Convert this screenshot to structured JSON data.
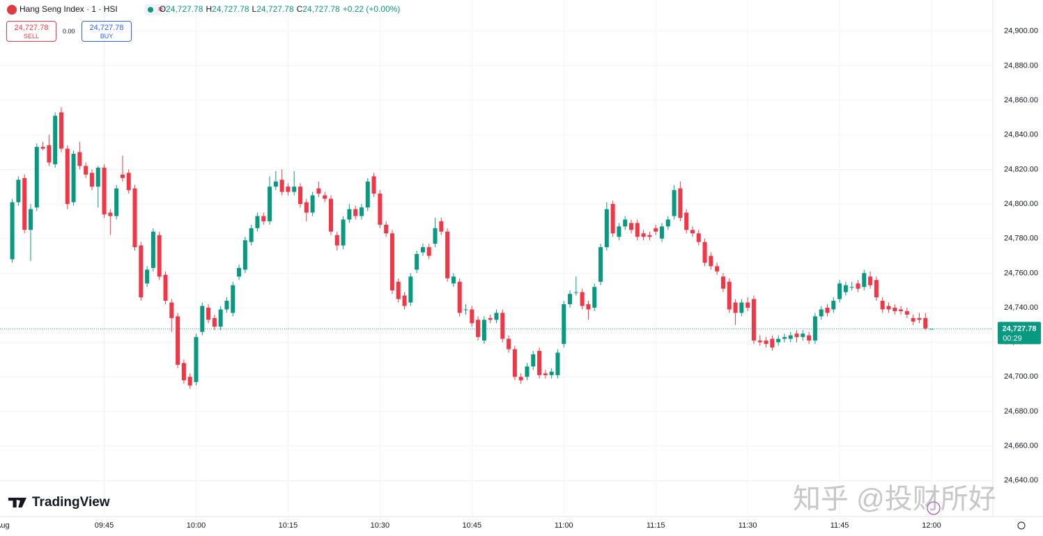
{
  "header": {
    "symbol": "Hang Seng Index · 1 · HSI",
    "o_key": "O",
    "o": "24,727.78",
    "h_key": "H",
    "h": "24,727.78",
    "l_key": "L",
    "l": "24,727.78",
    "c_key": "C",
    "c": "24,727.78",
    "change": "+0.22 (+0.00%)"
  },
  "trade": {
    "sell_price": "24,727.78",
    "sell": "SELL",
    "spread": "0.00",
    "buy_price": "24,727.78",
    "buy": "BUY"
  },
  "logo": "TradingView",
  "watermark": "知乎 @投财所好",
  "chart_data": {
    "type": "candlestick",
    "up_color": "#089981",
    "down_color": "#f23645",
    "grid": true,
    "xlim": [
      "09:28",
      "12:10"
    ],
    "ylim": [
      24620,
      24918
    ],
    "yticks": [
      {
        "value": 24640,
        "label": "24,640.00"
      },
      {
        "value": 24660,
        "label": "24,660.00"
      },
      {
        "value": 24680,
        "label": "24,680.00"
      },
      {
        "value": 24700,
        "label": "24,700.00"
      },
      {
        "value": 24720,
        "label": "24,720.00"
      },
      {
        "value": 24740,
        "label": "24,740.00"
      },
      {
        "value": 24760,
        "label": "24,760.00"
      },
      {
        "value": 24780,
        "label": "24,780.00"
      },
      {
        "value": 24800,
        "label": "24,800.00"
      },
      {
        "value": 24820,
        "label": "24,820.00"
      },
      {
        "value": 24840,
        "label": "24,840.00"
      },
      {
        "value": 24860,
        "label": "24,860.00"
      },
      {
        "value": 24880,
        "label": "24,880.00"
      },
      {
        "value": 24900,
        "label": "24,900.00"
      }
    ],
    "xticks": [
      {
        "value": "09:30",
        "label": "Aug"
      },
      "09:45",
      "10:00",
      "10:15",
      "10:30",
      "10:45",
      "11:00",
      "11:15",
      "11:30",
      "11:45",
      "12:00"
    ],
    "last_price": {
      "value": 24727.78,
      "label": "24,727.78"
    },
    "countdown": "00:29",
    "x": [
      "09:30",
      "09:31",
      "09:32",
      "09:33",
      "09:34",
      "09:35",
      "09:36",
      "09:37",
      "09:38",
      "09:39",
      "09:40",
      "09:41",
      "09:42",
      "09:43",
      "09:44",
      "09:45",
      "09:46",
      "09:47",
      "09:48",
      "09:49",
      "09:50",
      "09:51",
      "09:52",
      "09:53",
      "09:54",
      "09:55",
      "09:56",
      "09:57",
      "09:58",
      "09:59",
      "10:00",
      "10:01",
      "10:02",
      "10:03",
      "10:04",
      "10:05",
      "10:06",
      "10:07",
      "10:08",
      "10:09",
      "10:10",
      "10:11",
      "10:12",
      "10:13",
      "10:14",
      "10:15",
      "10:16",
      "10:17",
      "10:18",
      "10:19",
      "10:20",
      "10:21",
      "10:22",
      "10:23",
      "10:24",
      "10:25",
      "10:26",
      "10:27",
      "10:28",
      "10:29",
      "10:30",
      "10:31",
      "10:32",
      "10:33",
      "10:34",
      "10:35",
      "10:36",
      "10:37",
      "10:38",
      "10:39",
      "10:40",
      "10:41",
      "10:42",
      "10:43",
      "10:44",
      "10:45",
      "10:46",
      "10:47",
      "10:48",
      "10:49",
      "10:50",
      "10:51",
      "10:52",
      "10:53",
      "10:54",
      "10:55",
      "10:56",
      "10:57",
      "10:58",
      "10:59",
      "11:00",
      "11:01",
      "11:02",
      "11:03",
      "11:04",
      "11:05",
      "11:06",
      "11:07",
      "11:08",
      "11:09",
      "11:10",
      "11:11",
      "11:12",
      "11:13",
      "11:14",
      "11:15",
      "11:16",
      "11:17",
      "11:18",
      "11:19",
      "11:20",
      "11:21",
      "11:22",
      "11:23",
      "11:24",
      "11:25",
      "11:26",
      "11:27",
      "11:28",
      "11:29",
      "11:30",
      "11:31",
      "11:32",
      "11:33",
      "11:34",
      "11:35",
      "11:36",
      "11:37",
      "11:38",
      "11:39",
      "11:40",
      "11:41",
      "11:42",
      "11:43",
      "11:44",
      "11:45",
      "11:46",
      "11:47",
      "11:48",
      "11:49",
      "11:50",
      "11:51",
      "11:52",
      "11:53",
      "11:54",
      "11:55",
      "11:56",
      "11:57",
      "11:58",
      "11:59",
      "12:00"
    ],
    "candles": [
      [
        24768,
        24803,
        24766,
        24801
      ],
      [
        24801,
        24816,
        24799,
        24814
      ],
      [
        24815,
        24817,
        24783,
        24785
      ],
      [
        24785,
        24800,
        24767,
        24797
      ],
      [
        24798,
        24835,
        24796,
        24833
      ],
      [
        24833,
        24836,
        24831,
        24832
      ],
      [
        24834,
        24840,
        24822,
        24824
      ],
      [
        24823,
        24853,
        24821,
        24851
      ],
      [
        24853,
        24856,
        24830,
        24832
      ],
      [
        24832,
        24834,
        24797,
        24800
      ],
      [
        24801,
        24831,
        24799,
        24829
      ],
      [
        24830,
        24836,
        24820,
        24822
      ],
      [
        24822,
        24824,
        24815,
        24817
      ],
      [
        24818,
        24820,
        24808,
        24810
      ],
      [
        24810,
        24822,
        24798,
        24821
      ],
      [
        24821,
        24823,
        24792,
        24794
      ],
      [
        24795,
        24797,
        24782,
        24793
      ],
      [
        24793,
        24811,
        24791,
        24809
      ],
      [
        24817,
        24828,
        24813,
        24815
      ],
      [
        24818,
        24820,
        24806,
        24808
      ],
      [
        24809,
        24811,
        24773,
        24775
      ],
      [
        24776,
        24778,
        24744,
        24746
      ],
      [
        24754,
        24764,
        24752,
        24762
      ],
      [
        24763,
        24786,
        24761,
        24784
      ],
      [
        24782,
        24784,
        24756,
        24758
      ],
      [
        24759,
        24761,
        24742,
        24744
      ],
      [
        24743,
        24745,
        24726,
        24734
      ],
      [
        24735,
        24737,
        24705,
        24707
      ],
      [
        24708,
        24710,
        24696,
        24698
      ],
      [
        24700,
        24702,
        24693,
        24695
      ],
      [
        24697,
        24725,
        24695,
        24723
      ],
      [
        24726,
        24743,
        24724,
        24741
      ],
      [
        24740,
        24742,
        24731,
        24733
      ],
      [
        24734,
        24736,
        24727,
        24729
      ],
      [
        24729,
        24741,
        24727,
        24739
      ],
      [
        24739,
        24746,
        24737,
        24744
      ],
      [
        24737,
        24755,
        24735,
        24753
      ],
      [
        24758,
        24765,
        24756,
        24763
      ],
      [
        24762,
        24781,
        24760,
        24779
      ],
      [
        24778,
        24788,
        24776,
        24786
      ],
      [
        24786,
        24795,
        24784,
        24793
      ],
      [
        24793,
        24795,
        24788,
        24790
      ],
      [
        24790,
        24816,
        24788,
        24810
      ],
      [
        24810,
        24819,
        24808,
        24813
      ],
      [
        24814,
        24820,
        24805,
        24807
      ],
      [
        24810,
        24812,
        24805,
        24807
      ],
      [
        24807,
        24819,
        24805,
        24810
      ],
      [
        24810,
        24812,
        24798,
        24800
      ],
      [
        24801,
        24803,
        24790,
        24795
      ],
      [
        24795,
        24807,
        24793,
        24805
      ],
      [
        24809,
        24813,
        24804,
        24806
      ],
      [
        24805,
        24807,
        24801,
        24803
      ],
      [
        24803,
        24805,
        24782,
        24784
      ],
      [
        24782,
        24784,
        24773,
        24776
      ],
      [
        24776,
        24793,
        24774,
        24791
      ],
      [
        24791,
        24800,
        24789,
        24797
      ],
      [
        24797,
        24799,
        24791,
        24793
      ],
      [
        24793,
        24800,
        24791,
        24798
      ],
      [
        24798,
        24815,
        24796,
        24813
      ],
      [
        24816,
        24818,
        24804,
        24806
      ],
      [
        24806,
        24808,
        24786,
        24788
      ],
      [
        24788,
        24790,
        24781,
        24783
      ],
      [
        24783,
        24785,
        24748,
        24750
      ],
      [
        24755,
        24757,
        24743,
        24745
      ],
      [
        24747,
        24749,
        24739,
        24741
      ],
      [
        24743,
        24760,
        24741,
        24758
      ],
      [
        24762,
        24773,
        24760,
        24771
      ],
      [
        24772,
        24777,
        24770,
        24775
      ],
      [
        24775,
        24777,
        24768,
        24770
      ],
      [
        24777,
        24792,
        24775,
        24786
      ],
      [
        24790,
        24792,
        24782,
        24784
      ],
      [
        24784,
        24786,
        24755,
        24757
      ],
      [
        24754,
        24760,
        24752,
        24758
      ],
      [
        24755,
        24757,
        24735,
        24737
      ],
      [
        24739,
        24742,
        24736,
        24739
      ],
      [
        24739,
        24741,
        24729,
        24731
      ],
      [
        24733,
        24735,
        24721,
        24723
      ],
      [
        24721,
        24735,
        24719,
        24733
      ],
      [
        24734,
        24736,
        24731,
        24733
      ],
      [
        24733,
        24739,
        24731,
        24737
      ],
      [
        24737,
        24739,
        24720,
        24722
      ],
      [
        24722,
        24724,
        24714,
        24716
      ],
      [
        24716,
        24718,
        24698,
        24700
      ],
      [
        24700,
        24702,
        24696,
        24698
      ],
      [
        24700,
        24708,
        24698,
        24706
      ],
      [
        24706,
        24715,
        24704,
        24713
      ],
      [
        24715,
        24717,
        24699,
        24701
      ],
      [
        24702,
        24704,
        24699,
        24701
      ],
      [
        24701,
        24705,
        24699,
        24703
      ],
      [
        24701,
        24716,
        24699,
        24714
      ],
      [
        24719,
        24744,
        24717,
        24742
      ],
      [
        24742,
        24750,
        24740,
        24748
      ],
      [
        24749,
        24758,
        24747,
        24749
      ],
      [
        24749,
        24751,
        24739,
        24741
      ],
      [
        24742,
        24744,
        24733,
        24739
      ],
      [
        24740,
        24754,
        24738,
        24752
      ],
      [
        24755,
        24777,
        24753,
        24775
      ],
      [
        24775,
        24801,
        24773,
        24797
      ],
      [
        24800,
        24802,
        24781,
        24783
      ],
      [
        24781,
        24789,
        24779,
        24787
      ],
      [
        24787,
        24793,
        24785,
        24791
      ],
      [
        24789,
        24791,
        24783,
        24785
      ],
      [
        24789,
        24791,
        24779,
        24781
      ],
      [
        24783,
        24785,
        24779,
        24781
      ],
      [
        24782,
        24784,
        24779,
        24781
      ],
      [
        24786,
        24788,
        24782,
        24784
      ],
      [
        24780,
        24789,
        24778,
        24787
      ],
      [
        24787,
        24793,
        24785,
        24791
      ],
      [
        24793,
        24811,
        24791,
        24808
      ],
      [
        24809,
        24813,
        24790,
        24792
      ],
      [
        24795,
        24797,
        24783,
        24785
      ],
      [
        24785,
        24787,
        24781,
        24783
      ],
      [
        24783,
        24785,
        24776,
        24778
      ],
      [
        24778,
        24780,
        24764,
        24766
      ],
      [
        24770,
        24772,
        24762,
        24764
      ],
      [
        24764,
        24766,
        24759,
        24761
      ],
      [
        24758,
        24760,
        24749,
        24751
      ],
      [
        24755,
        24757,
        24737,
        24739
      ],
      [
        24743,
        24745,
        24730,
        24737
      ],
      [
        24737,
        24745,
        24735,
        24743
      ],
      [
        24743,
        24746,
        24738,
        24740
      ],
      [
        24745,
        24747,
        24719,
        24721
      ],
      [
        24721,
        24724,
        24718,
        24720
      ],
      [
        24721,
        24723,
        24717,
        24719
      ],
      [
        24722,
        24724,
        24715,
        24717
      ],
      [
        24720,
        24724,
        24718,
        24722
      ],
      [
        24722,
        24725,
        24720,
        24723
      ],
      [
        24722,
        24726,
        24720,
        24724
      ],
      [
        24725,
        24727,
        24720,
        24723
      ],
      [
        24723,
        24727,
        24721,
        24725
      ],
      [
        24724,
        24726,
        24719,
        24721
      ],
      [
        24721,
        24737,
        24719,
        24735
      ],
      [
        24735,
        24741,
        24733,
        24739
      ],
      [
        24740,
        24742,
        24735,
        24737
      ],
      [
        24739,
        24746,
        24737,
        24744
      ],
      [
        24745,
        24756,
        24743,
        24754
      ],
      [
        24749,
        24755,
        24747,
        24753
      ],
      [
        24752,
        24755,
        24750,
        24752
      ],
      [
        24754,
        24756,
        24749,
        24751
      ],
      [
        24752,
        24762,
        24750,
        24760
      ],
      [
        24758,
        24761,
        24751,
        24753
      ],
      [
        24756,
        24758,
        24744,
        24746
      ],
      [
        24744,
        24746,
        24737,
        24739
      ],
      [
        24741,
        24743,
        24737,
        24739
      ],
      [
        24740,
        24742,
        24736,
        24738
      ],
      [
        24739,
        24741,
        24736,
        24738
      ],
      [
        24738,
        24740,
        24734,
        24736
      ],
      [
        24734,
        24736,
        24730,
        24732
      ],
      [
        24734,
        24737,
        24731,
        24733
      ],
      [
        24734,
        24737,
        24727,
        24728
      ],
      [
        24727.78,
        24727.78,
        24727.78,
        24727.78
      ]
    ]
  }
}
